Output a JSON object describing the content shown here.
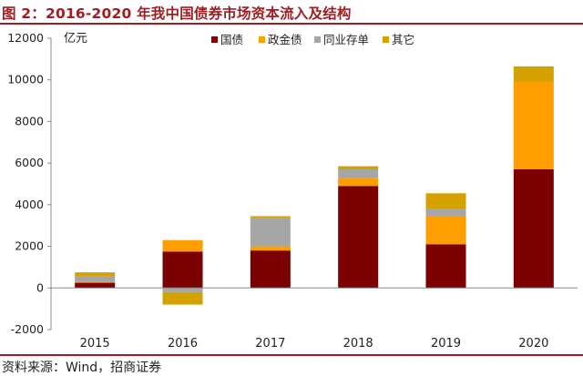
{
  "header": {
    "title": "图 2：2016-2020 年我中国债券市场资本流入及结构"
  },
  "footer": {
    "source": "资料来源：Wind，招商证券"
  },
  "chart_data": {
    "type": "bar",
    "stacked": true,
    "title": "图 2：2016-2020 年我中国债券市场资本流入及结构",
    "unit_label": "亿元",
    "categories": [
      "2015",
      "2016",
      "2017",
      "2018",
      "2019",
      "2020"
    ],
    "series": [
      {
        "name": "国债",
        "color": "#7b0000",
        "values": [
          250,
          1750,
          1800,
          4900,
          2100,
          5700
        ]
      },
      {
        "name": "政金债",
        "color": "#ff9e00",
        "values": [
          50,
          550,
          200,
          400,
          1350,
          4200
        ]
      },
      {
        "name": "同业存单",
        "color": "#a6a6a6",
        "values": [
          250,
          -200,
          1350,
          400,
          350,
          0
        ]
      },
      {
        "name": "其它",
        "color": "#d3a200",
        "values": [
          200,
          -600,
          100,
          150,
          750,
          750
        ]
      }
    ],
    "ylim": [
      -2000,
      12000
    ],
    "yticks": [
      -2000,
      0,
      2000,
      4000,
      6000,
      8000,
      10000,
      12000
    ],
    "legend_position": "top-center"
  }
}
